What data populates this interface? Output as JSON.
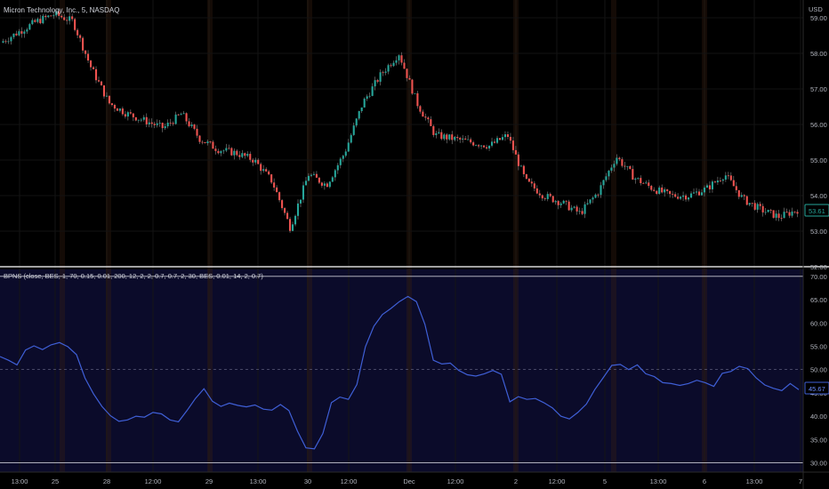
{
  "header": {
    "symbol_title": "Micron Technology, Inc., 5, NASDAQ",
    "currency": "USD",
    "indicator_title": "BPNS (close, BES, 1, 70, 0.15, 0.01, 200, 12, 2, 2, 0.7, 0.7, 2, 30, BES, 0.01, 14, 2, 0.7)"
  },
  "colors": {
    "background": "#000000",
    "indicator_background": "#0b0b2a",
    "candle_up": "#26a69a",
    "candle_down": "#ef5350",
    "wick": "#8a8a8a",
    "indicator_line": "#3f5fd6",
    "axis_text": "#b2b5be",
    "price_badge": "#26a69a",
    "indicator_badge": "#3f5fd6"
  },
  "chart_data": [
    {
      "type": "candlestick",
      "title": "Micron Technology, Inc., 5, NASDAQ",
      "ylabel": "USD",
      "ylim": [
        52.0,
        59.5
      ],
      "y_ticks": [
        "59.00",
        "58.00",
        "57.00",
        "56.00",
        "55.00",
        "54.00",
        "53.00",
        "52.00"
      ],
      "last_price": "53.61",
      "x": [
        "13:00",
        "25",
        "28",
        "12:00",
        "29",
        "13:00",
        "30",
        "12:00",
        "Dec",
        "12:00",
        "2",
        "12:00",
        "5",
        "13:00",
        "6",
        "13:00",
        "7"
      ],
      "close_path": [
        [
          0,
          58.3
        ],
        [
          1,
          58.6
        ],
        [
          2,
          58.9
        ],
        [
          3,
          59.1
        ],
        [
          4,
          58.9
        ],
        [
          5,
          57.6
        ],
        [
          6,
          56.6
        ],
        [
          7,
          56.3
        ],
        [
          8,
          56.1
        ],
        [
          9,
          55.9
        ],
        [
          10,
          56.3
        ],
        [
          11,
          55.6
        ],
        [
          12,
          55.3
        ],
        [
          13,
          55.2
        ],
        [
          14,
          55.0
        ],
        [
          15,
          54.4
        ],
        [
          16,
          53.1
        ],
        [
          17,
          54.6
        ],
        [
          18,
          54.3
        ],
        [
          19,
          55.2
        ],
        [
          20,
          56.6
        ],
        [
          21,
          57.4
        ],
        [
          22,
          58.0
        ],
        [
          23,
          56.6
        ],
        [
          24,
          55.7
        ],
        [
          25,
          55.6
        ],
        [
          26,
          55.5
        ],
        [
          27,
          55.4
        ],
        [
          28,
          55.7
        ],
        [
          29,
          54.4
        ],
        [
          30,
          54.0
        ],
        [
          31,
          53.8
        ],
        [
          32,
          53.5
        ],
        [
          33,
          54.1
        ],
        [
          34,
          55.1
        ],
        [
          35,
          54.5
        ],
        [
          36,
          54.2
        ],
        [
          37,
          54.0
        ],
        [
          38,
          54.0
        ],
        [
          39,
          54.2
        ],
        [
          40,
          54.6
        ],
        [
          41,
          53.9
        ],
        [
          42,
          53.6
        ],
        [
          43,
          53.4
        ],
        [
          44,
          53.6
        ]
      ]
    },
    {
      "type": "line",
      "title": "BPNS (close, BES, 1, 70, 0.15, 0.01, 200, 12, 2, 2, 0.7, 0.7, 2, 30, BES, 0.01, 14, 2, 0.7)",
      "ylim": [
        28.0,
        71.5
      ],
      "y_ticks": [
        "70.00",
        "65.00",
        "60.00",
        "55.00",
        "50.00",
        "45.00",
        "40.00",
        "35.00",
        "30.00"
      ],
      "bands": [
        70,
        50,
        30
      ],
      "last_value": "45.67",
      "series": [
        {
          "values": [
            [
              0,
              52.8
            ],
            [
              1,
              52.0
            ],
            [
              2,
              51.0
            ],
            [
              3,
              54.2
            ],
            [
              4,
              55.1
            ],
            [
              5,
              54.3
            ],
            [
              6,
              55.3
            ],
            [
              7,
              55.8
            ],
            [
              8,
              54.9
            ],
            [
              9,
              53.2
            ],
            [
              10,
              48.2
            ],
            [
              11,
              44.8
            ],
            [
              12,
              42.1
            ],
            [
              13,
              40.1
            ],
            [
              14,
              38.9
            ],
            [
              15,
              39.2
            ],
            [
              16,
              40.0
            ],
            [
              17,
              39.8
            ],
            [
              18,
              40.8
            ],
            [
              19,
              40.5
            ],
            [
              20,
              39.2
            ],
            [
              21,
              38.8
            ],
            [
              22,
              41.2
            ],
            [
              23,
              43.8
            ],
            [
              24,
              45.9
            ],
            [
              25,
              43.2
            ],
            [
              26,
              42.1
            ],
            [
              27,
              42.8
            ],
            [
              28,
              42.3
            ],
            [
              29,
              42.0
            ],
            [
              30,
              42.4
            ],
            [
              31,
              41.5
            ],
            [
              32,
              41.3
            ],
            [
              33,
              42.5
            ],
            [
              34,
              41.2
            ],
            [
              35,
              36.8
            ],
            [
              36,
              33.2
            ],
            [
              37,
              33.0
            ],
            [
              38,
              36.3
            ],
            [
              39,
              42.9
            ],
            [
              40,
              44.1
            ],
            [
              41,
              43.6
            ],
            [
              42,
              46.8
            ],
            [
              43,
              54.9
            ],
            [
              44,
              59.3
            ],
            [
              45,
              61.8
            ],
            [
              46,
              63.1
            ],
            [
              47,
              64.6
            ],
            [
              48,
              65.7
            ],
            [
              49,
              64.6
            ],
            [
              50,
              59.7
            ],
            [
              51,
              52.0
            ],
            [
              52,
              51.2
            ],
            [
              53,
              51.4
            ],
            [
              54,
              49.8
            ],
            [
              55,
              48.9
            ],
            [
              56,
              48.6
            ],
            [
              57,
              49.1
            ],
            [
              58,
              49.8
            ],
            [
              59,
              49.0
            ],
            [
              60,
              43.1
            ],
            [
              61,
              44.2
            ],
            [
              62,
              43.6
            ],
            [
              63,
              43.8
            ],
            [
              64,
              42.9
            ],
            [
              65,
              41.8
            ],
            [
              66,
              40.0
            ],
            [
              67,
              39.4
            ],
            [
              68,
              40.8
            ],
            [
              69,
              42.6
            ],
            [
              70,
              45.7
            ],
            [
              71,
              48.3
            ],
            [
              72,
              50.9
            ],
            [
              73,
              51.1
            ],
            [
              74,
              50.0
            ],
            [
              75,
              51.0
            ],
            [
              76,
              49.1
            ],
            [
              77,
              48.5
            ],
            [
              78,
              47.2
            ],
            [
              79,
              47.0
            ],
            [
              80,
              46.6
            ],
            [
              81,
              47.0
            ],
            [
              82,
              47.7
            ],
            [
              83,
              47.2
            ],
            [
              84,
              46.4
            ],
            [
              85,
              49.2
            ],
            [
              86,
              49.6
            ],
            [
              87,
              50.7
            ],
            [
              88,
              50.2
            ],
            [
              89,
              48.2
            ],
            [
              90,
              46.7
            ],
            [
              91,
              46.0
            ],
            [
              92,
              45.5
            ],
            [
              93,
              47.0
            ],
            [
              94,
              45.7
            ]
          ]
        }
      ]
    }
  ]
}
